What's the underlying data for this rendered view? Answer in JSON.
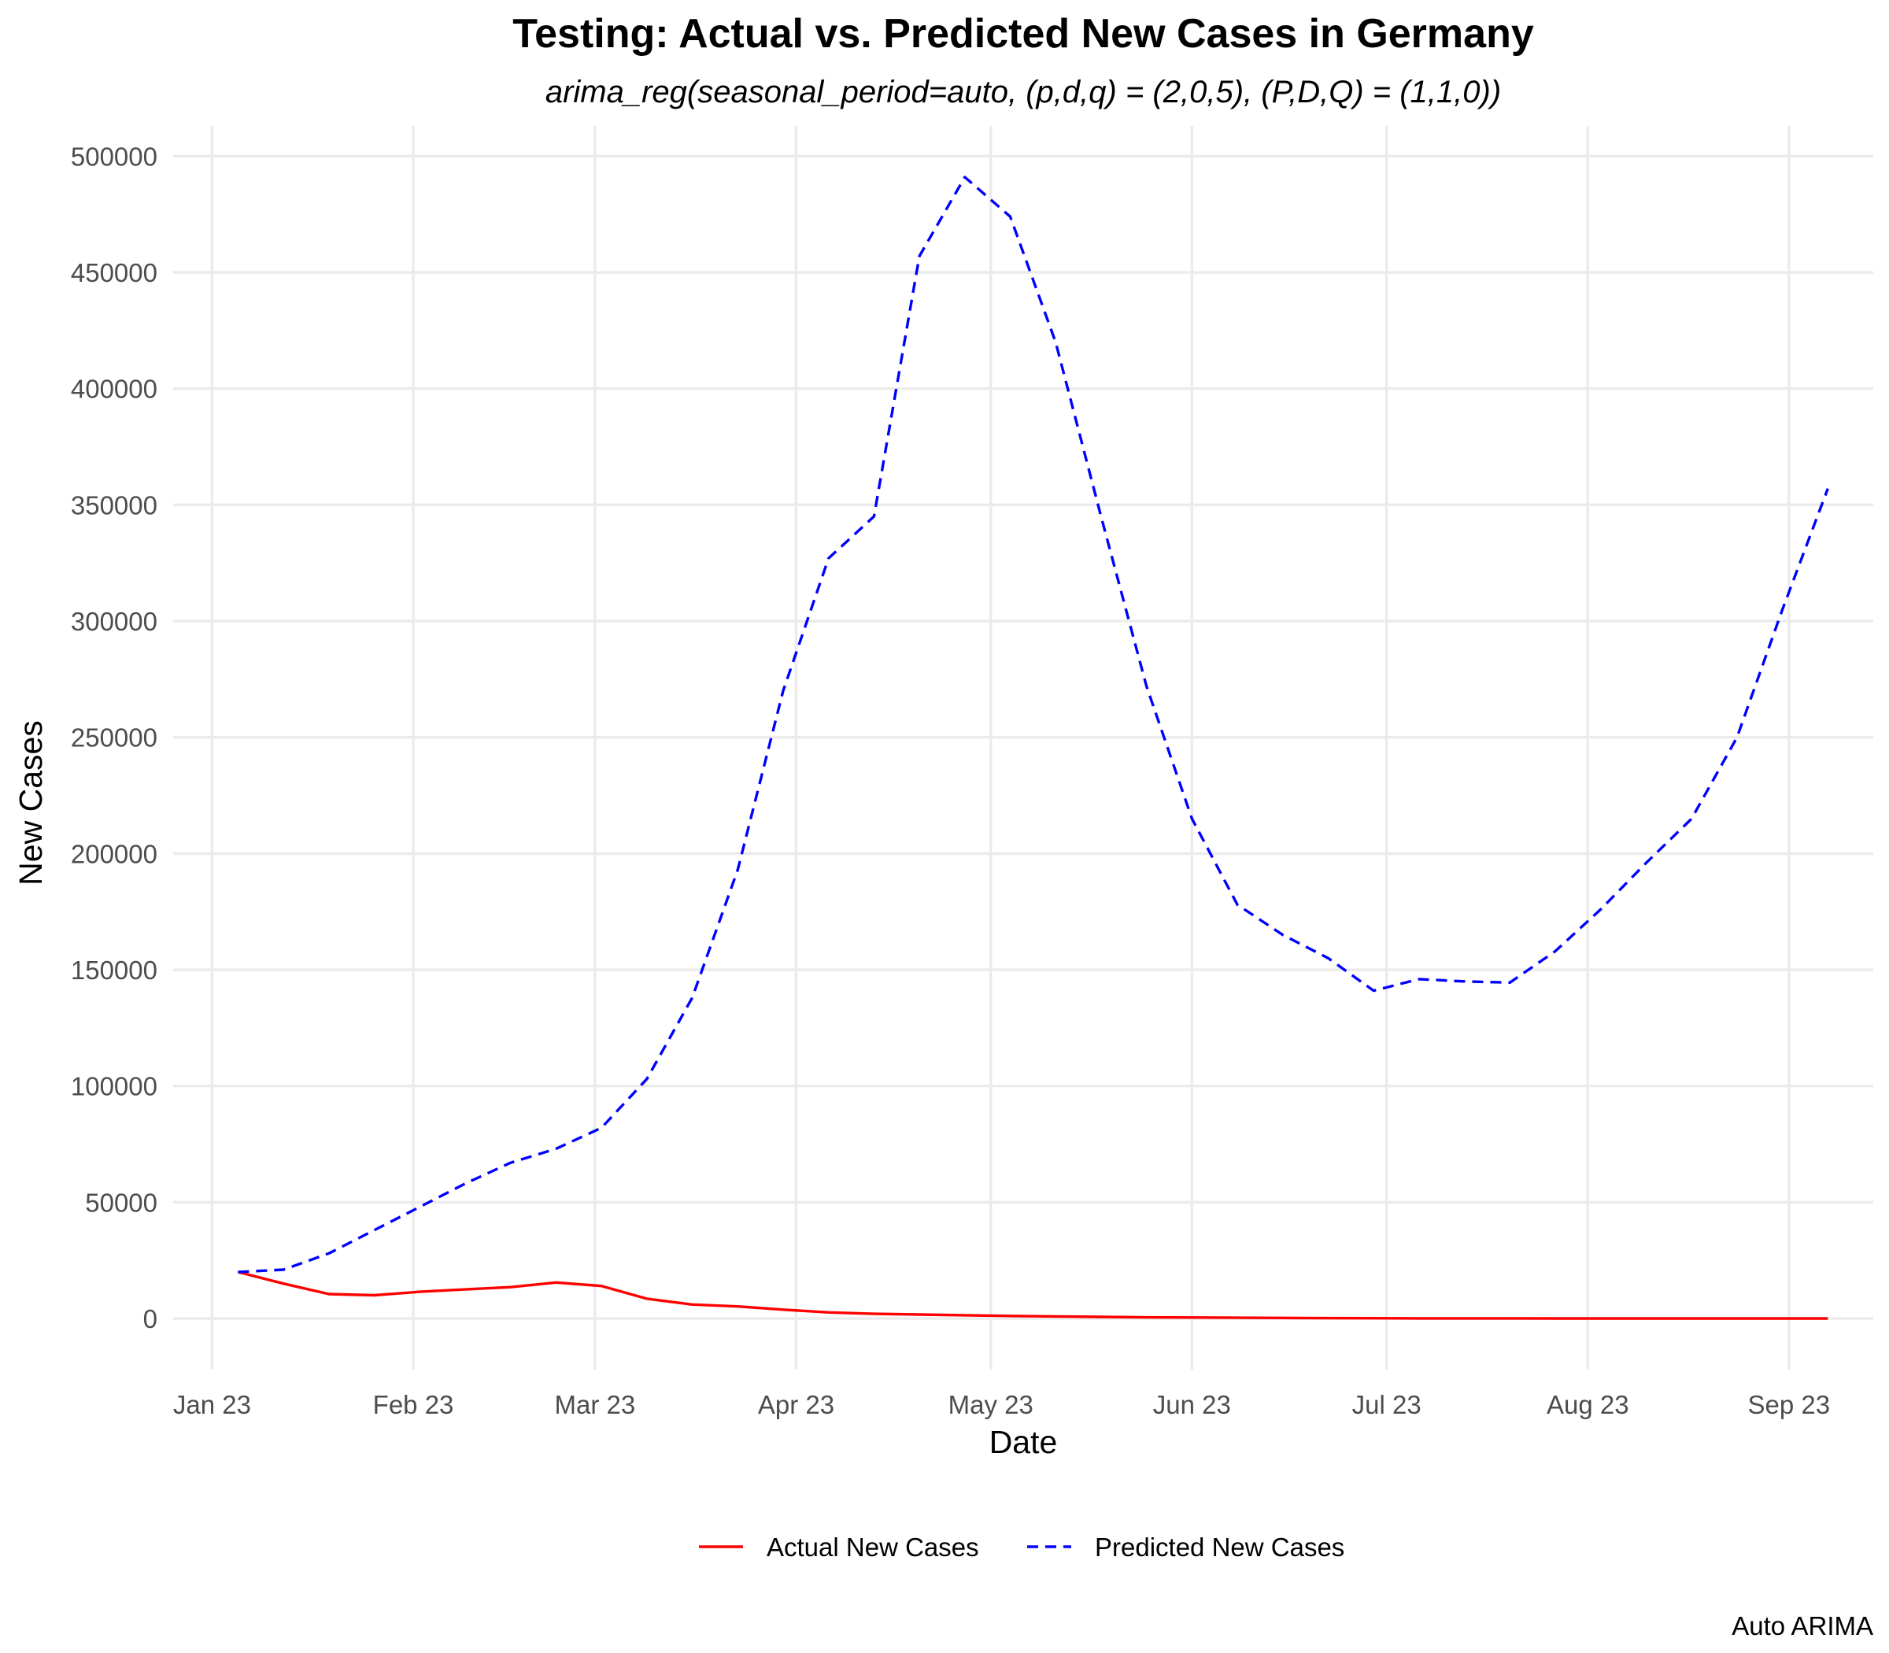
{
  "chart_data": {
    "type": "line",
    "title": "Testing: Actual vs. Predicted New Cases in Germany",
    "subtitle": "arima_reg(seasonal_period=auto, (p,d,q) = (2,0,5), (P,D,Q) = (1,1,0))",
    "xlabel": "Date",
    "ylabel": "New Cases",
    "caption": "Auto ARIMA",
    "x_tick_labels": [
      "Jan 23",
      "Feb 23",
      "Mar 23",
      "Apr 23",
      "May 23",
      "Jun 23",
      "Jul 23",
      "Aug 23",
      "Sep 23"
    ],
    "x_tick_dates": [
      "2023-01-01",
      "2023-02-01",
      "2023-03-01",
      "2023-04-01",
      "2023-05-01",
      "2023-06-01",
      "2023-07-01",
      "2023-08-01",
      "2023-09-01"
    ],
    "y_ticks": [
      0,
      50000,
      100000,
      150000,
      200000,
      250000,
      300000,
      350000,
      400000,
      450000,
      500000
    ],
    "xlim": [
      "2022-12-26",
      "2023-09-14"
    ],
    "ylim": [
      -22000,
      513000
    ],
    "grid": true,
    "legend_position": "bottom",
    "x": [
      "2023-01-05",
      "2023-01-12",
      "2023-01-19",
      "2023-01-26",
      "2023-02-02",
      "2023-02-09",
      "2023-02-16",
      "2023-02-23",
      "2023-03-02",
      "2023-03-09",
      "2023-03-16",
      "2023-03-23",
      "2023-03-30",
      "2023-04-06",
      "2023-04-13",
      "2023-04-20",
      "2023-04-27",
      "2023-05-04",
      "2023-05-11",
      "2023-05-18",
      "2023-05-25",
      "2023-06-01",
      "2023-06-08",
      "2023-06-15",
      "2023-06-22",
      "2023-06-29",
      "2023-07-06",
      "2023-07-13",
      "2023-07-20",
      "2023-07-27",
      "2023-08-03",
      "2023-08-10",
      "2023-08-17",
      "2023-08-24",
      "2023-08-31",
      "2023-09-07"
    ],
    "series": [
      {
        "name": "Actual New Cases",
        "color": "#ff0000",
        "dash": "solid",
        "values": [
          20000,
          15000,
          10500,
          10000,
          11500,
          12500,
          13500,
          15500,
          14000,
          8500,
          6000,
          5200,
          3800,
          2600,
          2000,
          1700,
          1400,
          1100,
          900,
          700,
          500,
          400,
          300,
          250,
          150,
          100,
          60,
          40,
          30,
          20,
          15,
          10,
          10,
          10,
          10,
          10
        ]
      },
      {
        "name": "Predicted New Cases",
        "color": "#0000ff",
        "dash": "dashed",
        "values": [
          20000,
          21000,
          28000,
          38000,
          48000,
          58000,
          67000,
          73000,
          82000,
          103000,
          138000,
          193000,
          270000,
          327000,
          345000,
          457000,
          491000,
          474000,
          420000,
          345000,
          272000,
          215000,
          178000,
          165000,
          155000,
          141000,
          146000,
          145000,
          144500,
          158000,
          176000,
          196000,
          215000,
          250000,
          305000,
          357000
        ]
      }
    ]
  }
}
